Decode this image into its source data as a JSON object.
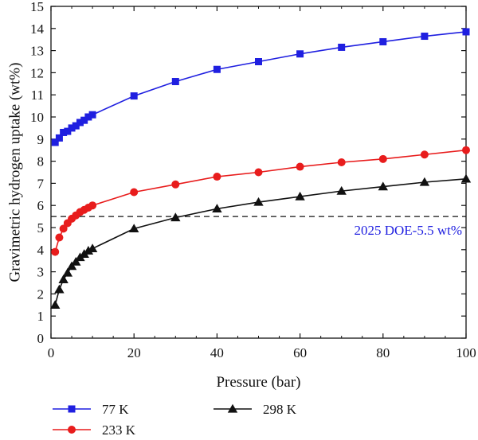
{
  "chart_data": {
    "type": "line",
    "xlabel": "Pressure (bar)",
    "ylabel": "Gravimetric hydrogen uptake (wt%)",
    "xlim": [
      0,
      100
    ],
    "ylim": [
      0,
      15
    ],
    "xticks": [
      0,
      20,
      40,
      60,
      80,
      100
    ],
    "yticks": [
      0,
      1,
      2,
      3,
      4,
      5,
      6,
      7,
      8,
      9,
      10,
      11,
      12,
      13,
      14,
      15
    ],
    "grid": false,
    "legend_position": "bottom",
    "series": [
      {
        "name": "77 K",
        "color": "#1f1fe0",
        "marker": "square",
        "x": [
          1,
          2,
          3,
          4,
          5,
          6,
          7,
          8,
          9,
          10,
          20,
          30,
          40,
          50,
          60,
          70,
          80,
          90,
          100
        ],
        "y": [
          8.85,
          9.05,
          9.3,
          9.35,
          9.5,
          9.6,
          9.75,
          9.85,
          10.0,
          10.1,
          10.95,
          11.6,
          12.15,
          12.5,
          12.85,
          13.15,
          13.4,
          13.65,
          13.85
        ]
      },
      {
        "name": "233 K",
        "color": "#e81c1c",
        "marker": "circle",
        "x": [
          1,
          2,
          3,
          4,
          5,
          6,
          7,
          8,
          9,
          10,
          20,
          30,
          40,
          50,
          60,
          70,
          80,
          90,
          100
        ],
        "y": [
          3.9,
          4.55,
          4.95,
          5.2,
          5.4,
          5.55,
          5.7,
          5.8,
          5.9,
          6.0,
          6.6,
          6.95,
          7.3,
          7.5,
          7.75,
          7.95,
          8.1,
          8.3,
          8.5
        ]
      },
      {
        "name": "298 K",
        "color": "#111111",
        "marker": "triangle",
        "x": [
          1,
          2,
          3,
          4,
          5,
          6,
          7,
          8,
          9,
          10,
          20,
          30,
          40,
          50,
          60,
          70,
          80,
          90,
          100
        ],
        "y": [
          1.5,
          2.2,
          2.65,
          2.95,
          3.25,
          3.45,
          3.65,
          3.8,
          3.95,
          4.05,
          4.95,
          5.45,
          5.85,
          6.15,
          6.4,
          6.65,
          6.85,
          7.05,
          7.2
        ]
      }
    ],
    "reference_line": {
      "y": 5.5,
      "style": "dashed",
      "color": "#111111",
      "label": "2025 DOE-5.5 wt%",
      "label_color": "#1f1fe0"
    }
  }
}
